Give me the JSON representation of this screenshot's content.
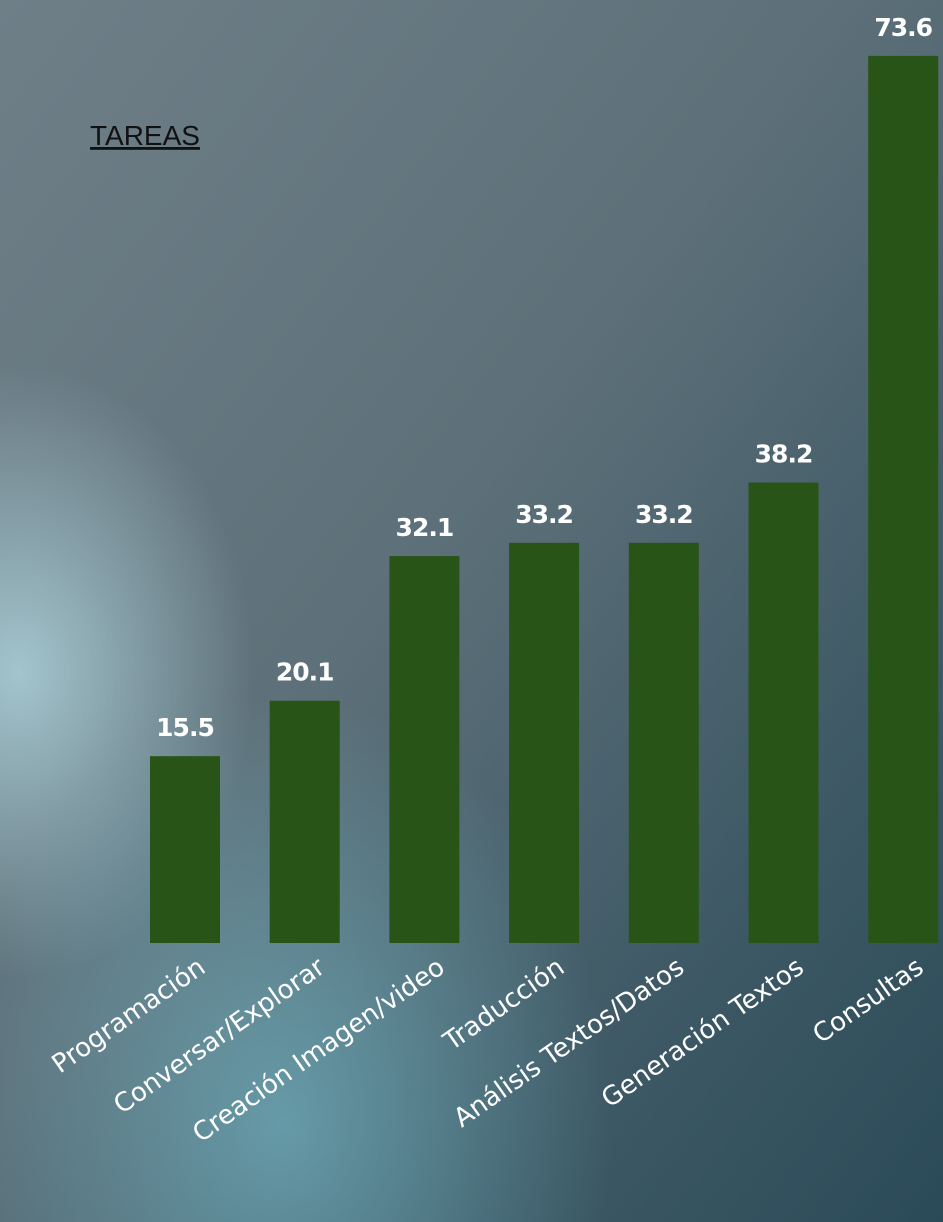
{
  "chart_data": {
    "type": "bar",
    "title": "TAREAS",
    "categories": [
      "Programación",
      "Conversar/Explorar",
      "Creación Imagen/video",
      "Traducción",
      "Análisis Textos/Datos",
      "Generación Textos",
      "Consultas"
    ],
    "values": [
      15.5,
      20.1,
      32.1,
      33.2,
      33.2,
      38.2,
      73.6
    ],
    "color": "#285418",
    "ylim": [
      0,
      75
    ]
  }
}
